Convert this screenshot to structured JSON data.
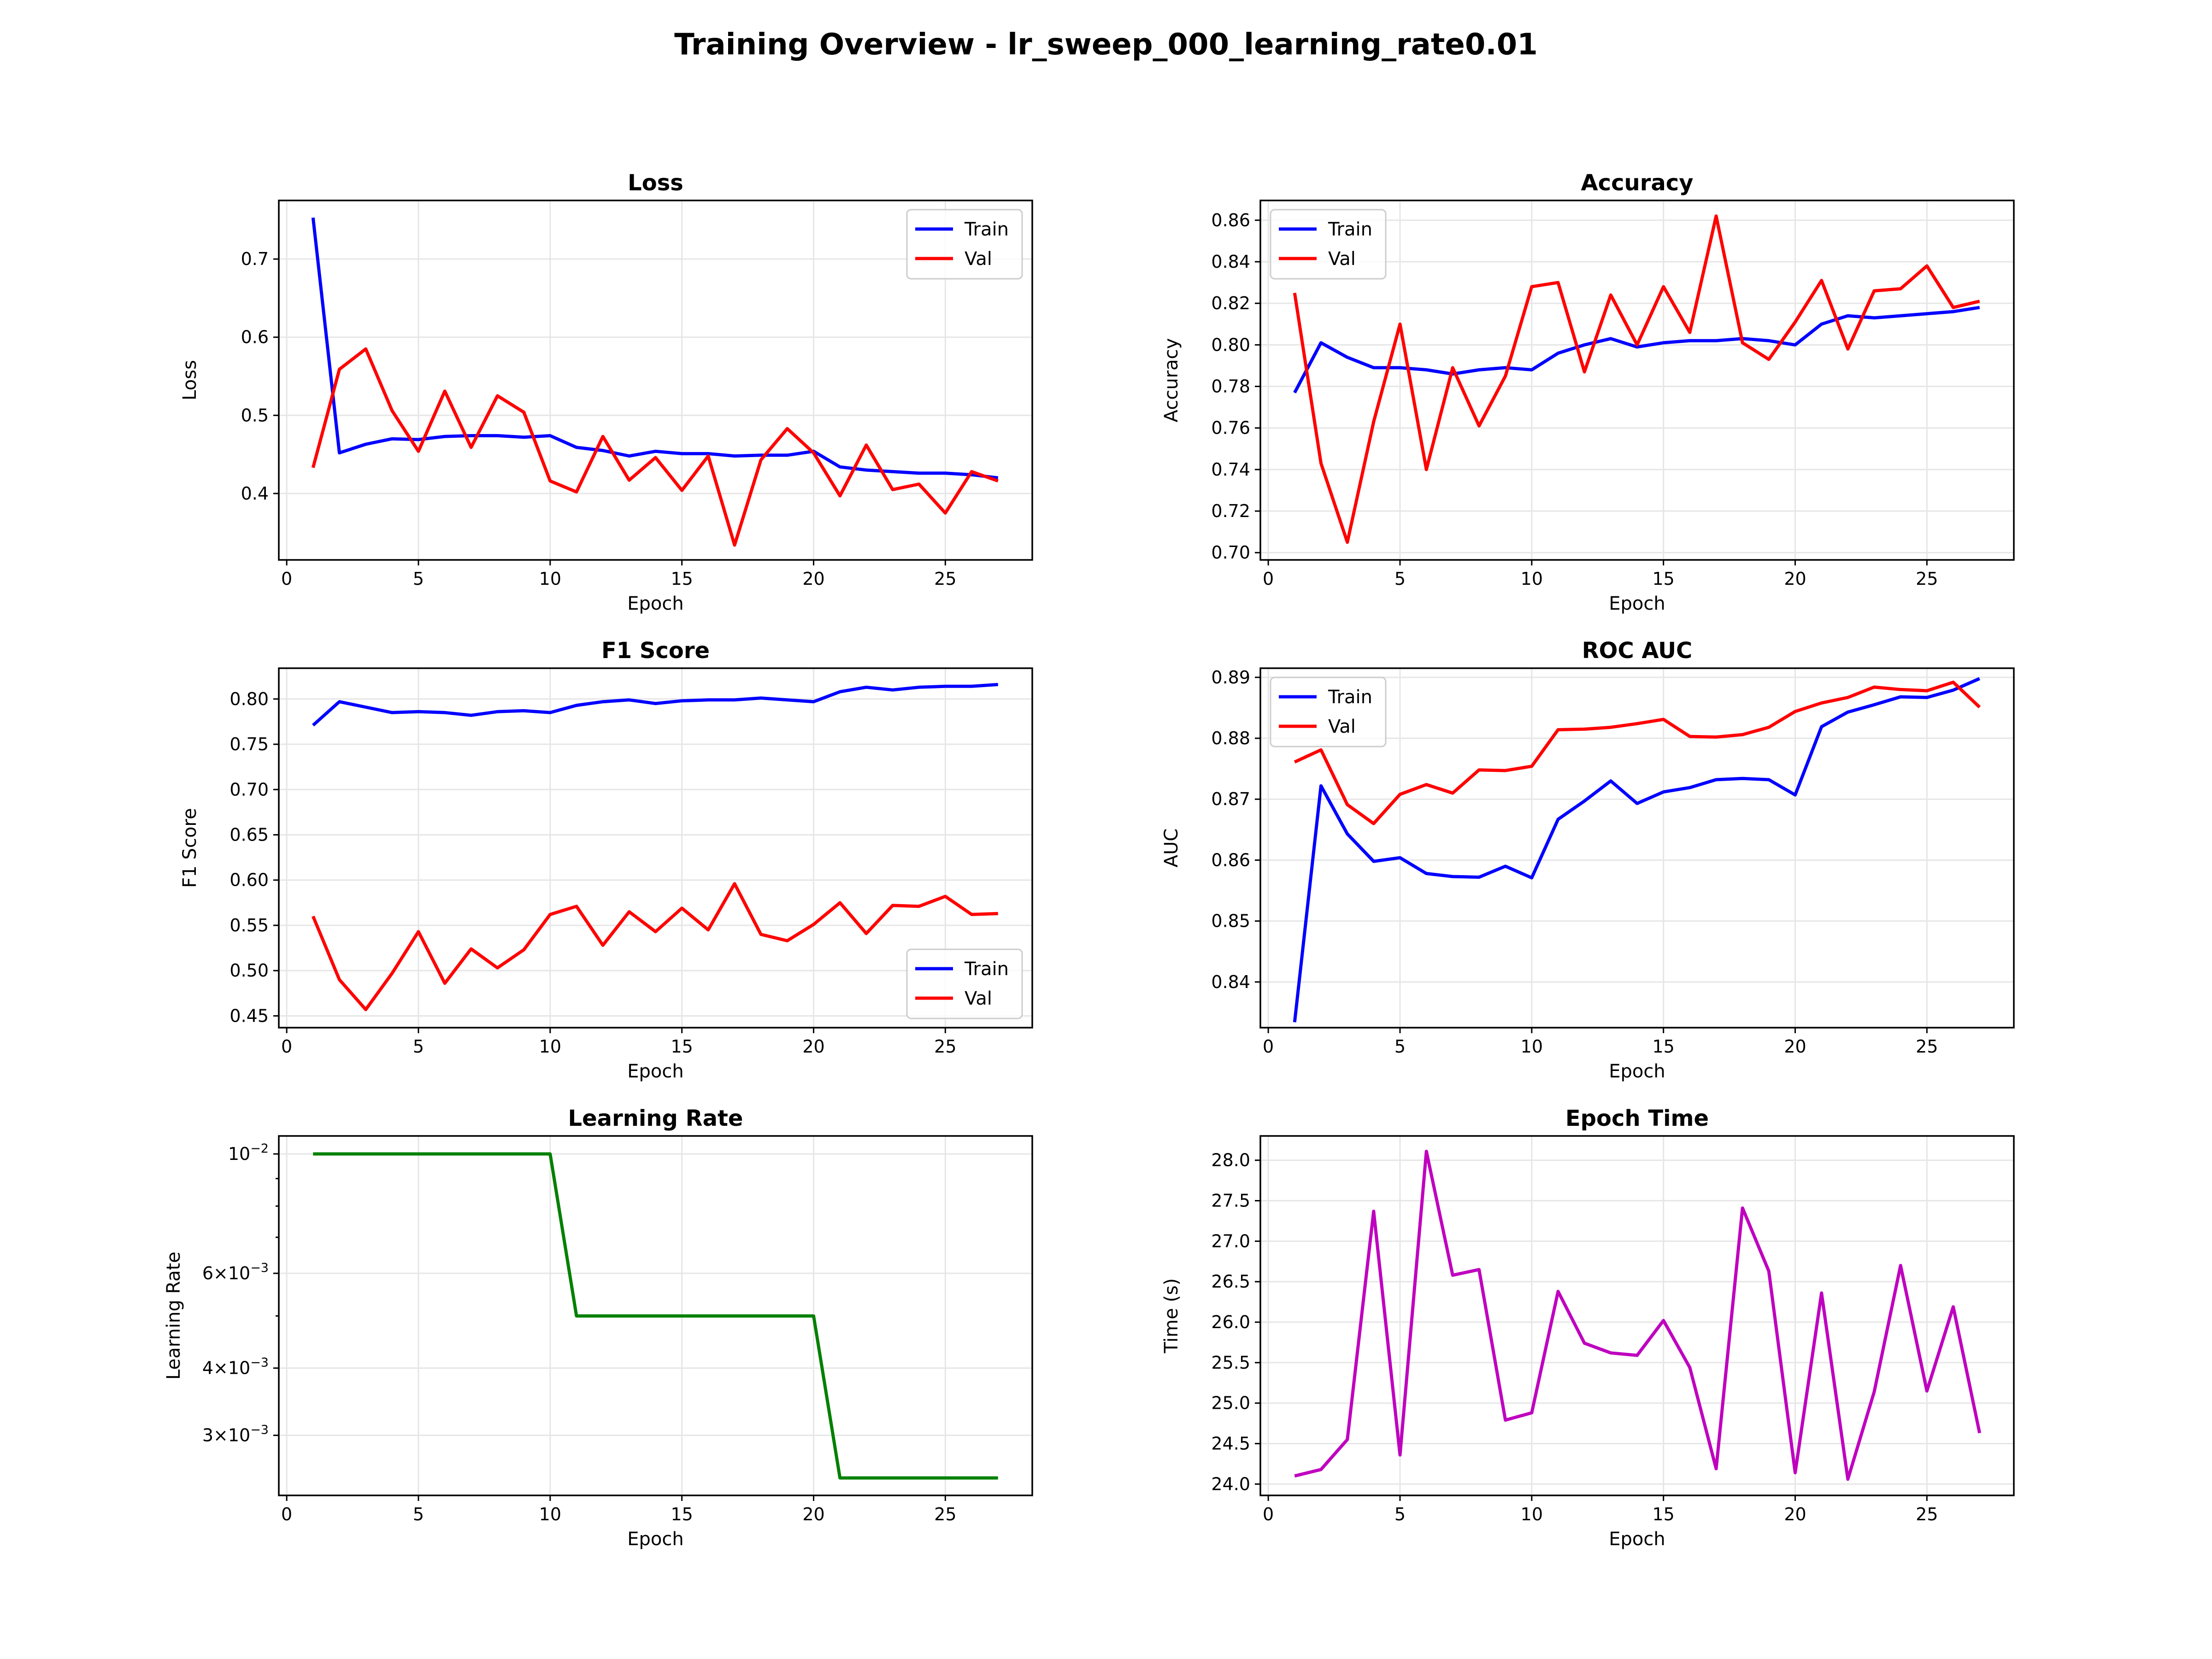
{
  "figure": {
    "title": "Training Overview - lr_sweep_000_learning_rate0.01"
  },
  "chart_data": [
    {
      "id": "loss",
      "type": "line",
      "title": "Loss",
      "xlabel": "Epoch",
      "ylabel": "Loss",
      "xlim": [
        -0.3,
        28.3
      ],
      "ylim": [
        0.315,
        0.775
      ],
      "xticks": [
        0,
        5,
        10,
        15,
        20,
        25
      ],
      "yticks": [
        0.4,
        0.5,
        0.6,
        0.7
      ],
      "ytick_labels": [
        "0.4",
        "0.5",
        "0.6",
        "0.7"
      ],
      "grid": true,
      "legend": "upper right",
      "x": [
        1,
        2,
        3,
        4,
        5,
        6,
        7,
        8,
        9,
        10,
        11,
        12,
        13,
        14,
        15,
        16,
        17,
        18,
        19,
        20,
        21,
        22,
        23,
        24,
        25,
        26,
        27
      ],
      "series": [
        {
          "name": "Train",
          "color": "#0000ff",
          "values": [
            0.753,
            0.452,
            0.463,
            0.47,
            0.469,
            0.473,
            0.474,
            0.474,
            0.472,
            0.474,
            0.459,
            0.455,
            0.448,
            0.454,
            0.451,
            0.451,
            0.448,
            0.449,
            0.449,
            0.454,
            0.434,
            0.43,
            0.428,
            0.426,
            0.426,
            0.424,
            0.42
          ]
        },
        {
          "name": "Val",
          "color": "#ff0000",
          "values": [
            0.433,
            0.559,
            0.585,
            0.506,
            0.454,
            0.531,
            0.459,
            0.525,
            0.504,
            0.416,
            0.402,
            0.473,
            0.417,
            0.446,
            0.404,
            0.448,
            0.334,
            0.443,
            0.483,
            0.452,
            0.397,
            0.462,
            0.405,
            0.412,
            0.375,
            0.428,
            0.416
          ]
        }
      ]
    },
    {
      "id": "accuracy",
      "type": "line",
      "title": "Accuracy",
      "xlabel": "Epoch",
      "ylabel": "Accuracy",
      "xlim": [
        -0.3,
        28.3
      ],
      "ylim": [
        0.6965,
        0.8695
      ],
      "xticks": [
        0,
        5,
        10,
        15,
        20,
        25
      ],
      "yticks": [
        0.7,
        0.72,
        0.74,
        0.76,
        0.78,
        0.8,
        0.82,
        0.84,
        0.86
      ],
      "ytick_labels": [
        "0.70",
        "0.72",
        "0.74",
        "0.76",
        "0.78",
        "0.80",
        "0.82",
        "0.84",
        "0.86"
      ],
      "grid": true,
      "legend": "upper left",
      "x": [
        1,
        2,
        3,
        4,
        5,
        6,
        7,
        8,
        9,
        10,
        11,
        12,
        13,
        14,
        15,
        16,
        17,
        18,
        19,
        20,
        21,
        22,
        23,
        24,
        25,
        26,
        27
      ],
      "series": [
        {
          "name": "Train",
          "color": "#0000ff",
          "values": [
            0.777,
            0.801,
            0.794,
            0.789,
            0.789,
            0.788,
            0.786,
            0.788,
            0.789,
            0.788,
            0.796,
            0.8,
            0.803,
            0.799,
            0.801,
            0.802,
            0.802,
            0.803,
            0.802,
            0.8,
            0.81,
            0.814,
            0.813,
            0.814,
            0.815,
            0.816,
            0.818
          ]
        },
        {
          "name": "Val",
          "color": "#ff0000",
          "values": [
            0.825,
            0.743,
            0.705,
            0.763,
            0.81,
            0.74,
            0.789,
            0.761,
            0.785,
            0.828,
            0.83,
            0.787,
            0.824,
            0.8,
            0.828,
            0.806,
            0.862,
            0.801,
            0.793,
            0.811,
            0.831,
            0.798,
            0.826,
            0.827,
            0.838,
            0.818,
            0.821
          ]
        }
      ]
    },
    {
      "id": "f1",
      "type": "line",
      "title": "F1 Score",
      "xlabel": "Epoch",
      "ylabel": "F1 Score",
      "xlim": [
        -0.3,
        28.3
      ],
      "ylim": [
        0.437,
        0.834
      ],
      "xticks": [
        0,
        5,
        10,
        15,
        20,
        25
      ],
      "yticks": [
        0.45,
        0.5,
        0.55,
        0.6,
        0.65,
        0.7,
        0.75,
        0.8
      ],
      "ytick_labels": [
        "0.45",
        "0.50",
        "0.55",
        "0.60",
        "0.65",
        "0.70",
        "0.75",
        "0.80"
      ],
      "grid": true,
      "legend": "lower right",
      "x": [
        1,
        2,
        3,
        4,
        5,
        6,
        7,
        8,
        9,
        10,
        11,
        12,
        13,
        14,
        15,
        16,
        17,
        18,
        19,
        20,
        21,
        22,
        23,
        24,
        25,
        26,
        27
      ],
      "series": [
        {
          "name": "Train",
          "color": "#0000ff",
          "values": [
            0.771,
            0.797,
            0.791,
            0.785,
            0.786,
            0.785,
            0.782,
            0.786,
            0.787,
            0.785,
            0.793,
            0.797,
            0.799,
            0.795,
            0.798,
            0.799,
            0.799,
            0.801,
            0.799,
            0.797,
            0.808,
            0.813,
            0.81,
            0.813,
            0.814,
            0.814,
            0.816
          ]
        },
        {
          "name": "Val",
          "color": "#ff0000",
          "values": [
            0.56,
            0.49,
            0.457,
            0.497,
            0.543,
            0.486,
            0.524,
            0.503,
            0.523,
            0.562,
            0.571,
            0.528,
            0.565,
            0.543,
            0.569,
            0.545,
            0.596,
            0.54,
            0.533,
            0.551,
            0.575,
            0.541,
            0.572,
            0.571,
            0.582,
            0.562,
            0.563
          ]
        }
      ]
    },
    {
      "id": "roc_auc",
      "type": "line",
      "title": "ROC AUC",
      "xlabel": "Epoch",
      "ylabel": "AUC",
      "xlim": [
        -0.3,
        28.3
      ],
      "ylim": [
        0.8325,
        0.8915
      ],
      "xticks": [
        0,
        5,
        10,
        15,
        20,
        25
      ],
      "yticks": [
        0.84,
        0.85,
        0.86,
        0.87,
        0.88,
        0.89
      ],
      "ytick_labels": [
        "0.84",
        "0.85",
        "0.86",
        "0.87",
        "0.88",
        "0.89"
      ],
      "grid": true,
      "legend": "upper left",
      "x": [
        1,
        2,
        3,
        4,
        5,
        6,
        7,
        8,
        9,
        10,
        11,
        12,
        13,
        14,
        15,
        16,
        17,
        18,
        19,
        20,
        21,
        22,
        23,
        24,
        25,
        26,
        27
      ],
      "series": [
        {
          "name": "Train",
          "color": "#0000ff",
          "values": [
            0.8334,
            0.8722,
            0.8643,
            0.8598,
            0.8604,
            0.8578,
            0.8573,
            0.8572,
            0.859,
            0.8571,
            0.8667,
            0.8697,
            0.873,
            0.8693,
            0.8712,
            0.8719,
            0.8732,
            0.8734,
            0.8732,
            0.8707,
            0.8819,
            0.8843,
            0.8855,
            0.8868,
            0.8867,
            0.8879,
            0.8898
          ]
        },
        {
          "name": "Val",
          "color": "#ff0000",
          "values": [
            0.8761,
            0.8781,
            0.8691,
            0.866,
            0.8708,
            0.8724,
            0.871,
            0.8748,
            0.8747,
            0.8754,
            0.8814,
            0.8815,
            0.8818,
            0.8824,
            0.8831,
            0.8803,
            0.8802,
            0.8806,
            0.8818,
            0.8844,
            0.8858,
            0.8867,
            0.8884,
            0.888,
            0.8878,
            0.8892,
            0.8851
          ]
        }
      ]
    },
    {
      "id": "learning_rate",
      "type": "line",
      "title": "Learning Rate",
      "xlabel": "Epoch",
      "ylabel": "Learning Rate",
      "xlim": [
        -0.3,
        28.3
      ],
      "ylim": [
        0.00232,
        0.0108
      ],
      "yscale": "log",
      "xticks": [
        0,
        5,
        10,
        15,
        20,
        25
      ],
      "yticks": [
        0.01,
        0.006,
        0.004,
        0.003
      ],
      "ytick_labels": [
        "10^-2",
        "6×10^-3",
        "4×10^-3",
        "3×10^-3"
      ],
      "minor_yticks": [
        0.005,
        0.007,
        0.008,
        0.009
      ],
      "grid": true,
      "legend": "none",
      "x": [
        1,
        2,
        3,
        4,
        5,
        6,
        7,
        8,
        9,
        10,
        11,
        12,
        13,
        14,
        15,
        16,
        17,
        18,
        19,
        20,
        21,
        22,
        23,
        24,
        25,
        26,
        27
      ],
      "series": [
        {
          "color": "#008000",
          "values": [
            0.01,
            0.01,
            0.01,
            0.01,
            0.01,
            0.01,
            0.01,
            0.01,
            0.01,
            0.01,
            0.005,
            0.005,
            0.005,
            0.005,
            0.005,
            0.005,
            0.005,
            0.005,
            0.005,
            0.005,
            0.0025,
            0.0025,
            0.0025,
            0.0025,
            0.0025,
            0.0025,
            0.0025
          ]
        }
      ]
    },
    {
      "id": "epoch_time",
      "type": "line",
      "title": "Epoch Time",
      "xlabel": "Epoch",
      "ylabel": "Time (s)",
      "xlim": [
        -0.3,
        28.3
      ],
      "ylim": [
        23.86,
        28.3
      ],
      "xticks": [
        0,
        5,
        10,
        15,
        20,
        25
      ],
      "yticks": [
        24.0,
        24.5,
        25.0,
        25.5,
        26.0,
        26.5,
        27.0,
        27.5,
        28.0
      ],
      "ytick_labels": [
        "24.0",
        "24.5",
        "25.0",
        "25.5",
        "26.0",
        "26.5",
        "27.0",
        "27.5",
        "28.0"
      ],
      "grid": true,
      "legend": "none",
      "x": [
        1,
        2,
        3,
        4,
        5,
        6,
        7,
        8,
        9,
        10,
        11,
        12,
        13,
        14,
        15,
        16,
        17,
        18,
        19,
        20,
        21,
        22,
        23,
        24,
        25,
        26,
        27
      ],
      "series": [
        {
          "color": "#bf00bf",
          "values": [
            24.1,
            24.18,
            24.55,
            27.37,
            24.36,
            28.11,
            26.58,
            26.65,
            24.79,
            24.88,
            26.38,
            25.74,
            25.62,
            25.59,
            26.02,
            25.44,
            24.19,
            27.41,
            26.63,
            24.14,
            26.36,
            24.06,
            25.14,
            26.7,
            25.15,
            26.19,
            24.63
          ]
        }
      ]
    }
  ]
}
